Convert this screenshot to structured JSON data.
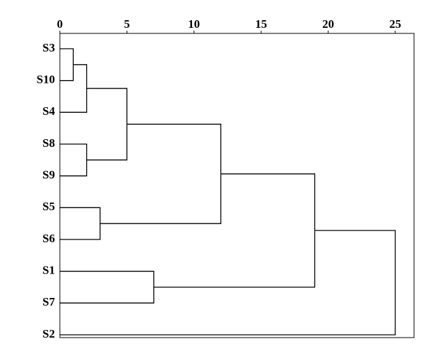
{
  "chart_data": {
    "type": "dendrogram",
    "labels": [
      "S3",
      "S10",
      "S4",
      "S8",
      "S9",
      "S5",
      "S6",
      "S1",
      "S7",
      "S2"
    ],
    "merges": [
      {
        "left": 0,
        "right": 1,
        "height": 1
      },
      {
        "left": 10,
        "right": 2,
        "height": 2
      },
      {
        "left": 3,
        "right": 4,
        "height": 2
      },
      {
        "left": 11,
        "right": 12,
        "height": 5
      },
      {
        "left": 5,
        "right": 6,
        "height": 3
      },
      {
        "left": 13,
        "right": 14,
        "height": 12
      },
      {
        "left": 7,
        "right": 8,
        "height": 7
      },
      {
        "left": 15,
        "right": 16,
        "height": 19
      },
      {
        "left": 17,
        "right": 9,
        "height": 25
      }
    ],
    "xlim": [
      0,
      26.4
    ],
    "xticks": [
      0,
      5,
      10,
      15,
      20,
      25
    ],
    "color": "#000000"
  }
}
